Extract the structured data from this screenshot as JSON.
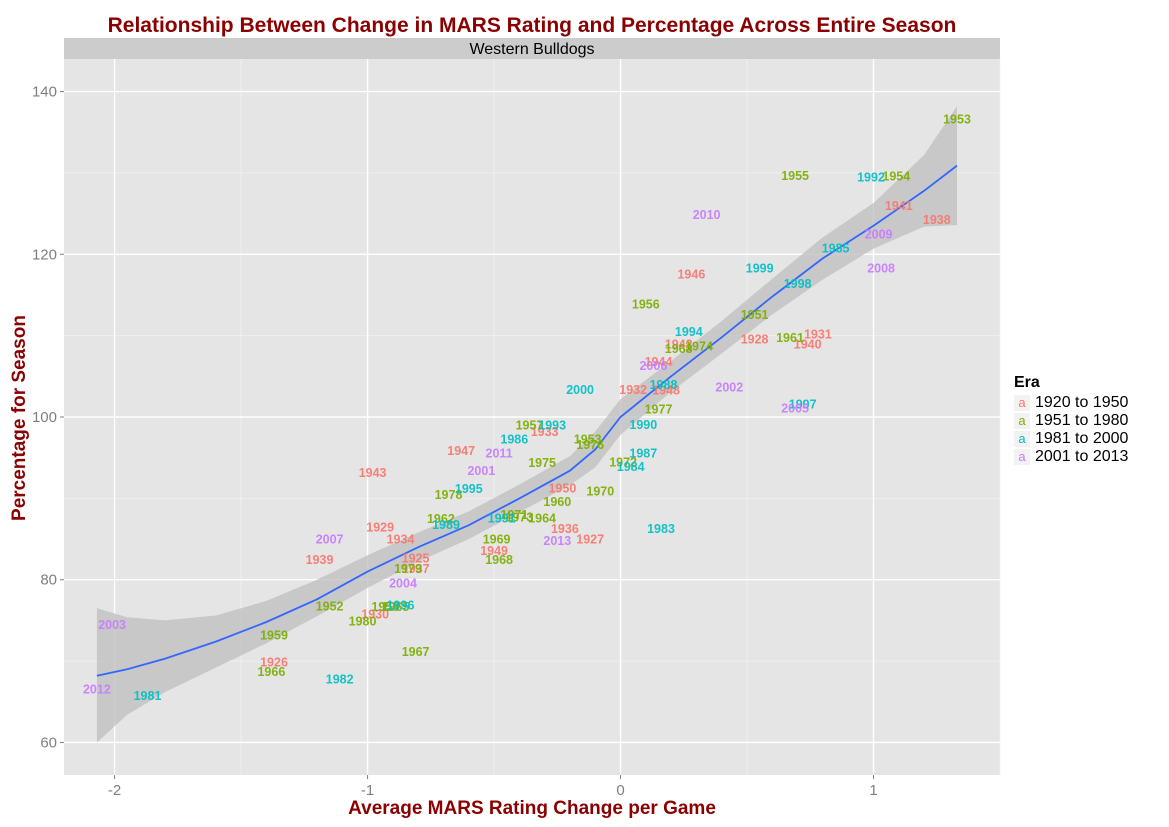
{
  "chart_data": {
    "type": "scatter",
    "title": "Relationship Between Change in MARS Rating and Percentage Across Entire Season",
    "facet": "Western Bulldogs",
    "xlabel": "Average MARS Rating Change per Game",
    "ylabel": "Percentage for Season",
    "xlim": [
      -2.2,
      1.5
    ],
    "ylim": [
      56,
      144
    ],
    "x_ticks": [
      -2,
      -1,
      0,
      1
    ],
    "y_ticks": [
      60,
      80,
      100,
      120,
      140
    ],
    "grid": true,
    "legend": {
      "title": "Era",
      "placement": "right"
    },
    "colors": {
      "1920 to 1950": "#f8766d",
      "1951 to 1980": "#7cae00",
      "1981 to 2000": "#00bfc4",
      "2001 to 2013": "#c77cff",
      "smooth_line": "#3366ff",
      "ribbon": "#bebebe",
      "panel": "#e5e5e5",
      "title_text": "#8b0000"
    },
    "series": [
      {
        "name": "1920 to 1950",
        "points": [
          {
            "label": "1926",
            "x": -1.37,
            "y": 69.9
          },
          {
            "label": "1930",
            "x": -0.97,
            "y": 75.8
          },
          {
            "label": "1939",
            "x": -1.19,
            "y": 82.5
          },
          {
            "label": "1925",
            "x": -0.81,
            "y": 82.7
          },
          {
            "label": "1937",
            "x": -0.81,
            "y": 81.4
          },
          {
            "label": "1934",
            "x": -0.87,
            "y": 85.0
          },
          {
            "label": "1929",
            "x": -0.95,
            "y": 86.5
          },
          {
            "label": "1943",
            "x": -0.98,
            "y": 93.2
          },
          {
            "label": "1949",
            "x": -0.5,
            "y": 83.6
          },
          {
            "label": "1936",
            "x": -0.22,
            "y": 86.3
          },
          {
            "label": "1927",
            "x": -0.12,
            "y": 85.0
          },
          {
            "label": "1950",
            "x": -0.23,
            "y": 91.3
          },
          {
            "label": "1933",
            "x": -0.3,
            "y": 98.2
          },
          {
            "label": "1947",
            "x": -0.63,
            "y": 95.9
          },
          {
            "label": "1932",
            "x": 0.05,
            "y": 103.4
          },
          {
            "label": "1948",
            "x": 0.18,
            "y": 103.3
          },
          {
            "label": "1944",
            "x": 0.15,
            "y": 106.8
          },
          {
            "label": "1942",
            "x": 0.23,
            "y": 109.0
          },
          {
            "label": "1946",
            "x": 0.28,
            "y": 117.6
          },
          {
            "label": "1928",
            "x": 0.53,
            "y": 109.6
          },
          {
            "label": "1940",
            "x": 0.74,
            "y": 109.0
          },
          {
            "label": "1931",
            "x": 0.78,
            "y": 110.2
          },
          {
            "label": "1941",
            "x": 1.1,
            "y": 126.0
          },
          {
            "label": "1938",
            "x": 1.25,
            "y": 124.3
          }
        ]
      },
      {
        "name": "1951 to 1980",
        "points": [
          {
            "label": "1966",
            "x": -1.38,
            "y": 68.7
          },
          {
            "label": "1959",
            "x": -1.37,
            "y": 73.2
          },
          {
            "label": "1952",
            "x": -1.15,
            "y": 76.8
          },
          {
            "label": "1980",
            "x": -1.02,
            "y": 74.9
          },
          {
            "label": "1958",
            "x": -0.93,
            "y": 76.7
          },
          {
            "label": "1965",
            "x": -0.89,
            "y": 76.7
          },
          {
            "label": "1967",
            "x": -0.81,
            "y": 71.2
          },
          {
            "label": "1979",
            "x": -0.84,
            "y": 81.4
          },
          {
            "label": "1968",
            "x": -0.48,
            "y": 82.5
          },
          {
            "label": "1969",
            "x": -0.49,
            "y": 85.0
          },
          {
            "label": "1962",
            "x": -0.71,
            "y": 87.5
          },
          {
            "label": "1978",
            "x": -0.68,
            "y": 90.5
          },
          {
            "label": "1964",
            "x": -0.31,
            "y": 87.6
          },
          {
            "label": "1971",
            "x": -0.42,
            "y": 88.0
          },
          {
            "label": "1973",
            "x": -0.4,
            "y": 87.7
          },
          {
            "label": "1960",
            "x": -0.25,
            "y": 89.6
          },
          {
            "label": "1975",
            "x": -0.31,
            "y": 94.4
          },
          {
            "label": "1970",
            "x": -0.08,
            "y": 90.9
          },
          {
            "label": "1957",
            "x": -0.36,
            "y": 99.0
          },
          {
            "label": "1953",
            "x": -0.13,
            "y": 97.3
          },
          {
            "label": "1976",
            "x": -0.12,
            "y": 96.6
          },
          {
            "label": "1972",
            "x": 0.01,
            "y": 94.5
          },
          {
            "label": "1977",
            "x": 0.15,
            "y": 101.0
          },
          {
            "label": "1963",
            "x": 0.23,
            "y": 108.4
          },
          {
            "label": "1974",
            "x": 0.31,
            "y": 108.7
          },
          {
            "label": "1956",
            "x": 0.1,
            "y": 113.9
          },
          {
            "label": "1951",
            "x": 0.53,
            "y": 112.6
          },
          {
            "label": "1961",
            "x": 0.67,
            "y": 109.8
          },
          {
            "label": "1955",
            "x": 0.69,
            "y": 129.7
          },
          {
            "label": "1954",
            "x": 1.09,
            "y": 129.6
          },
          {
            "label": "1953",
            "x": 1.33,
            "y": 136.6
          }
        ]
      },
      {
        "name": "1981 to 2000",
        "points": [
          {
            "label": "1981",
            "x": -1.87,
            "y": 65.8
          },
          {
            "label": "1982",
            "x": -1.11,
            "y": 67.8
          },
          {
            "label": "1996",
            "x": -0.87,
            "y": 76.9
          },
          {
            "label": "1989",
            "x": -0.69,
            "y": 86.8
          },
          {
            "label": "1991",
            "x": -0.47,
            "y": 87.6
          },
          {
            "label": "1995",
            "x": -0.6,
            "y": 91.2
          },
          {
            "label": "1986",
            "x": -0.42,
            "y": 97.3
          },
          {
            "label": "1993",
            "x": -0.27,
            "y": 99.0
          },
          {
            "label": "1983",
            "x": 0.16,
            "y": 86.3
          },
          {
            "label": "1984",
            "x": 0.04,
            "y": 93.9
          },
          {
            "label": "1987",
            "x": 0.09,
            "y": 95.6
          },
          {
            "label": "1990",
            "x": 0.09,
            "y": 99.1
          },
          {
            "label": "1988",
            "x": 0.17,
            "y": 104.0
          },
          {
            "label": "2000",
            "x": -0.16,
            "y": 103.4
          },
          {
            "label": "1994",
            "x": 0.27,
            "y": 110.5
          },
          {
            "label": "1997",
            "x": 0.72,
            "y": 101.6
          },
          {
            "label": "1998",
            "x": 0.7,
            "y": 116.4
          },
          {
            "label": "1999",
            "x": 0.55,
            "y": 118.3
          },
          {
            "label": "1985",
            "x": 0.85,
            "y": 120.8
          },
          {
            "label": "1992",
            "x": 0.99,
            "y": 129.5
          }
        ]
      },
      {
        "name": "2001 to 2013",
        "points": [
          {
            "label": "2012",
            "x": -2.07,
            "y": 66.6
          },
          {
            "label": "2003",
            "x": -2.01,
            "y": 74.5
          },
          {
            "label": "2007",
            "x": -1.15,
            "y": 85.0
          },
          {
            "label": "2004",
            "x": -0.86,
            "y": 79.6
          },
          {
            "label": "2013",
            "x": -0.25,
            "y": 84.8
          },
          {
            "label": "2001",
            "x": -0.55,
            "y": 93.4
          },
          {
            "label": "2011",
            "x": -0.48,
            "y": 95.6
          },
          {
            "label": "2006",
            "x": 0.13,
            "y": 106.3
          },
          {
            "label": "2002",
            "x": 0.43,
            "y": 103.7
          },
          {
            "label": "2005",
            "x": 0.69,
            "y": 101.1
          },
          {
            "label": "2010",
            "x": 0.34,
            "y": 124.9
          },
          {
            "label": "2009",
            "x": 1.02,
            "y": 122.5
          },
          {
            "label": "2008",
            "x": 1.03,
            "y": 118.3
          }
        ]
      }
    ],
    "smooth": {
      "x": [
        -2.07,
        -1.95,
        -1.8,
        -1.6,
        -1.4,
        -1.2,
        -1.0,
        -0.8,
        -0.6,
        -0.4,
        -0.2,
        -0.1,
        0.0,
        0.2,
        0.4,
        0.6,
        0.8,
        1.0,
        1.2,
        1.33
      ],
      "y": [
        68.2,
        69.0,
        70.3,
        72.4,
        74.8,
        77.6,
        81.0,
        84.0,
        86.7,
        90.0,
        93.4,
        96.0,
        100.0,
        105.0,
        109.8,
        114.8,
        119.5,
        123.5,
        127.8,
        130.9
      ],
      "lower": [
        60.0,
        63.4,
        66.2,
        69.2,
        72.2,
        75.5,
        79.0,
        82.2,
        85.0,
        88.3,
        91.6,
        93.8,
        97.8,
        103.1,
        107.8,
        112.6,
        116.9,
        120.7,
        123.4,
        123.6
      ],
      "upper": [
        76.5,
        75.4,
        75.0,
        75.6,
        77.4,
        80.0,
        83.0,
        85.8,
        88.4,
        91.7,
        95.2,
        98.2,
        102.2,
        106.9,
        111.8,
        117.0,
        122.1,
        126.3,
        132.2,
        138.2
      ]
    }
  }
}
